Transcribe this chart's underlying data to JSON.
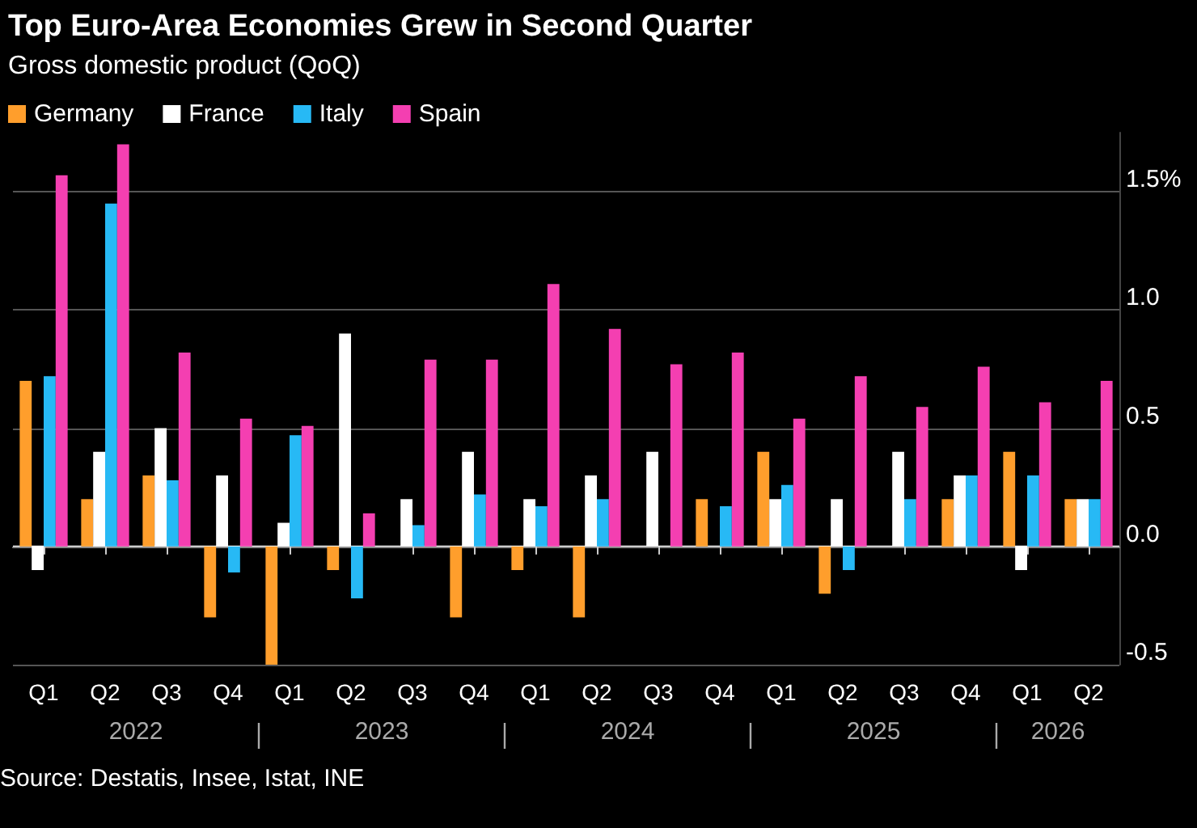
{
  "chart_data": {
    "type": "bar",
    "title": "Top Euro-Area Economies Grew in Second Quarter",
    "subtitle": "Gross domestic product (QoQ)",
    "categories": [
      "Q1",
      "Q2",
      "Q3",
      "Q4",
      "Q1",
      "Q2",
      "Q3",
      "Q4",
      "Q1",
      "Q2",
      "Q3",
      "Q4",
      "Q1",
      "Q2",
      "Q3",
      "Q4",
      "Q1",
      "Q2"
    ],
    "series": [
      {
        "name": "Germany",
        "color": "#ff9e2c",
        "values": [
          0.7,
          0.2,
          0.3,
          -0.3,
          -0.5,
          -0.1,
          0,
          -0.3,
          -0.1,
          -0.3,
          0,
          0.2,
          0.4,
          -0.2,
          0,
          0.2,
          0.4,
          0.2
        ]
      },
      {
        "name": "France",
        "color": "#ffffff",
        "values": [
          -0.1,
          0.4,
          0.5,
          0.3,
          0.1,
          0.9,
          0.2,
          0.4,
          0.2,
          0.3,
          0.4,
          0,
          0.2,
          0.2,
          0.4,
          0.3,
          -0.1,
          0.2
        ]
      },
      {
        "name": "Italy",
        "color": "#27b9f5",
        "values": [
          0.72,
          1.45,
          0.28,
          -0.11,
          0.47,
          -0.22,
          0.09,
          0.22,
          0.17,
          0.2,
          0,
          0.17,
          0.26,
          -0.1,
          0.2,
          0.3,
          0.3,
          0.2
        ]
      },
      {
        "name": "Spain",
        "color": "#f43fb1",
        "values": [
          1.57,
          1.7,
          0.82,
          0.54,
          0.51,
          0.14,
          0.79,
          0.79,
          1.11,
          0.92,
          0.77,
          0.82,
          0.54,
          0.72,
          0.59,
          0.76,
          0.61,
          0.7
        ]
      }
    ],
    "ylim": [
      -0.5,
      1.75
    ],
    "yticks": [
      -0.5,
      {
        "value": 0,
        "label": "0.0"
      },
      0.5,
      {
        "value": 1,
        "label": "1.0"
      },
      {
        "value": 1.5,
        "label": "1.5%"
      }
    ],
    "grid": "y",
    "legend": "top left",
    "annotations": [
      "2022",
      "2023",
      "2024",
      "2025",
      "2026",
      "Source: Destatis, Insee, Istat, INE"
    ]
  }
}
